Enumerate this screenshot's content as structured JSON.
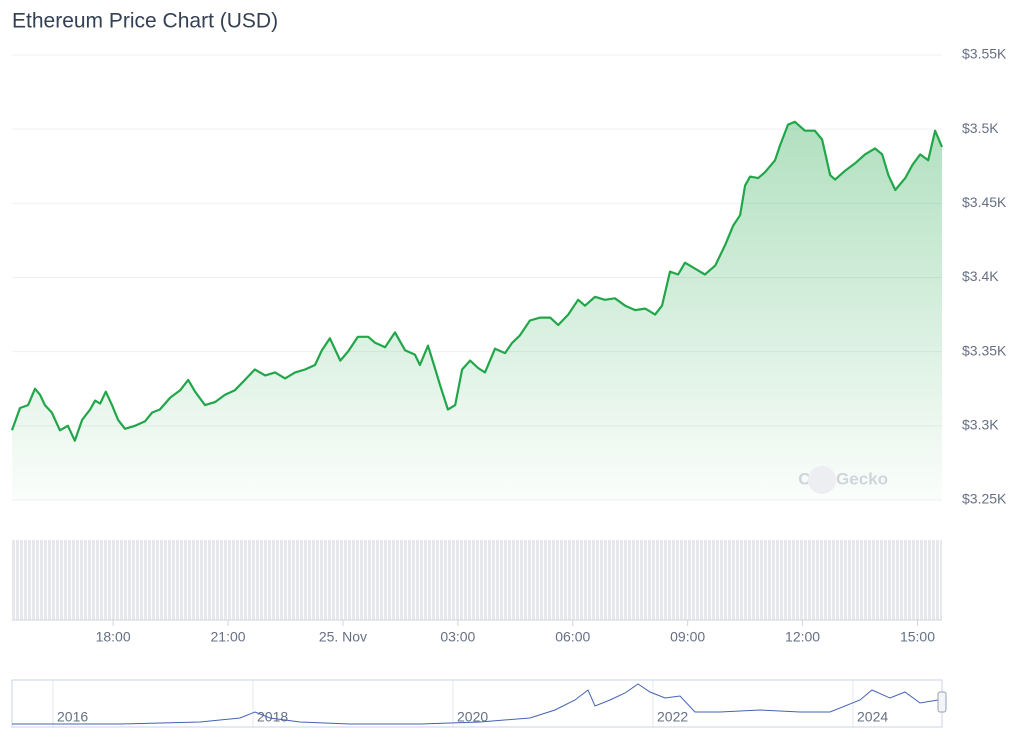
{
  "chart_data": {
    "type": "line",
    "title": "Ethereum Price Chart (USD)",
    "watermark": "CoinGecko",
    "x": [
      15.36,
      15.57,
      15.78,
      15.96,
      16.09,
      16.22,
      16.4,
      16.61,
      16.82,
      17.0,
      17.19,
      17.4,
      17.53,
      17.66,
      17.81,
      17.97,
      18.13,
      18.31,
      18.57,
      18.83,
      19.02,
      19.22,
      19.49,
      19.75,
      19.96,
      20.14,
      20.4,
      20.66,
      20.92,
      21.18,
      21.44,
      21.7,
      21.97,
      22.23,
      22.49,
      22.75,
      23.01,
      23.27,
      23.45,
      23.66,
      23.93,
      24.13,
      24.39,
      24.66,
      24.84,
      25.1,
      25.36,
      25.62,
      25.88,
      26.01,
      26.22,
      26.4,
      26.53,
      26.74,
      26.93,
      27.11,
      27.32,
      27.53,
      27.71,
      27.97,
      28.23,
      28.42,
      28.62,
      28.88,
      29.15,
      29.41,
      29.62,
      29.88,
      30.14,
      30.32,
      30.58,
      30.84,
      31.1,
      31.37,
      31.63,
      31.89,
      32.15,
      32.33,
      32.54,
      32.75,
      32.93,
      33.19,
      33.45,
      33.72,
      33.98,
      34.19,
      34.37,
      34.5,
      34.63,
      34.84,
      35.02,
      35.28,
      35.41,
      35.62,
      35.8,
      36.06,
      36.32,
      36.51,
      36.72,
      36.85,
      37.11,
      37.37,
      37.63,
      37.89,
      38.08,
      38.24,
      38.42,
      38.68,
      38.87,
      39.07,
      39.28,
      39.46,
      39.64
    ],
    "series": [
      {
        "name": "Price",
        "color": "#21a649",
        "values": [
          3297,
          3312,
          3314,
          3325,
          3321,
          3314,
          3309,
          3297,
          3300,
          3290,
          3304,
          3311,
          3317,
          3315,
          3323,
          3314,
          3304,
          3298,
          3300,
          3303,
          3309,
          3311,
          3319,
          3324,
          3331,
          3323,
          3314,
          3316,
          3321,
          3324,
          3331,
          3338,
          3334,
          3336,
          3332,
          3336,
          3338,
          3341,
          3351,
          3359,
          3344,
          3350,
          3360,
          3360,
          3356,
          3353,
          3363,
          3351,
          3348,
          3341,
          3354,
          3339,
          3328,
          3311,
          3314,
          3338,
          3344,
          3339,
          3336,
          3352,
          3349,
          3356,
          3361,
          3371,
          3373,
          3373,
          3368,
          3375,
          3385,
          3381,
          3387,
          3385,
          3386,
          3381,
          3378,
          3379,
          3375,
          3381,
          3404,
          3402,
          3410,
          3406,
          3402,
          3408,
          3422,
          3435,
          3442,
          3462,
          3468,
          3467,
          3471,
          3479,
          3489,
          3503,
          3505,
          3499,
          3499,
          3493,
          3469,
          3466,
          3472,
          3477,
          3483,
          3487,
          3483,
          3469,
          3459,
          3467,
          3476,
          3483,
          3479,
          3499,
          3488
        ]
      }
    ],
    "xlim": [
      15.36,
      39.64
    ],
    "xticks": [
      {
        "value": 18,
        "label": "18:00"
      },
      {
        "value": 21,
        "label": "21:00"
      },
      {
        "value": 24,
        "label": "25. Nov"
      },
      {
        "value": 27,
        "label": "03:00"
      },
      {
        "value": 30,
        "label": "06:00"
      },
      {
        "value": 33,
        "label": "09:00"
      },
      {
        "value": 36,
        "label": "12:00"
      },
      {
        "value": 39,
        "label": "15:00"
      }
    ],
    "ylim": [
      3250,
      3550
    ],
    "yticks": [
      {
        "value": 3250,
        "label": "$3.25K"
      },
      {
        "value": 3300,
        "label": "$3.3K"
      },
      {
        "value": 3350,
        "label": "$3.35K"
      },
      {
        "value": 3400,
        "label": "$3.4K"
      },
      {
        "value": 3450,
        "label": "$3.45K"
      },
      {
        "value": 3500,
        "label": "$3.5K"
      },
      {
        "value": 3550,
        "label": "$3.55K"
      }
    ],
    "grid": true,
    "navigator_labels": [
      "2016",
      "2018",
      "2020",
      "2022",
      "2024"
    ]
  }
}
